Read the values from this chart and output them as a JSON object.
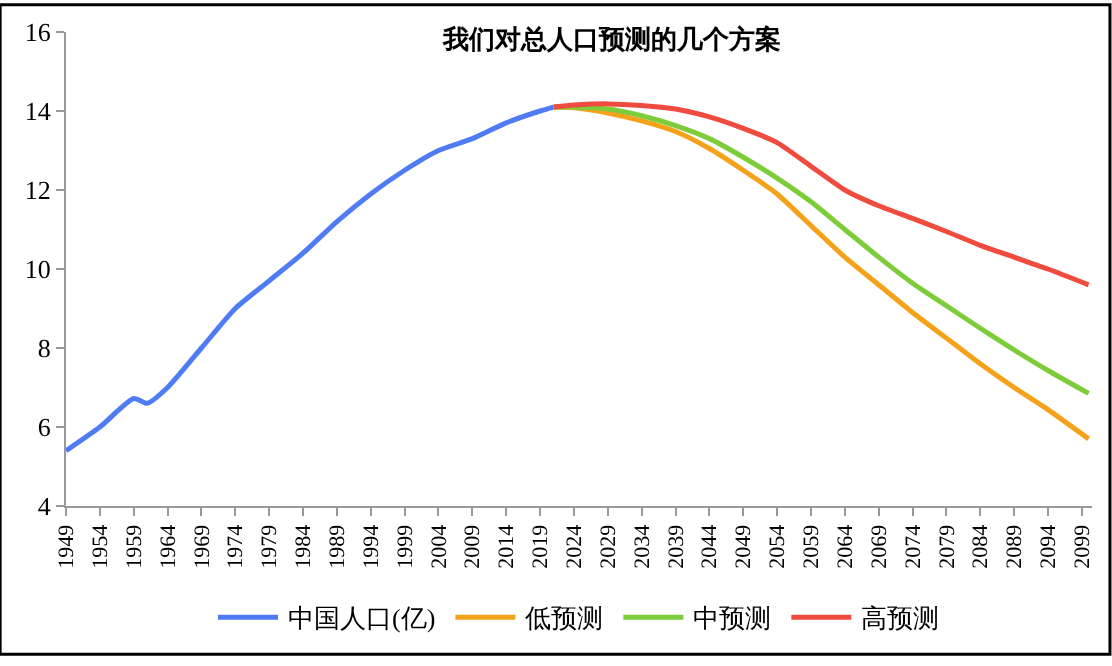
{
  "chart_data": {
    "type": "line",
    "title": "我们对总人口预测的几个方案",
    "xlim": [
      1949,
      2100.5
    ],
    "xticks": [
      1949,
      1954,
      1959,
      1964,
      1969,
      1974,
      1979,
      1984,
      1989,
      1994,
      1999,
      2004,
      2009,
      2014,
      2019,
      2024,
      2029,
      2034,
      2039,
      2044,
      2049,
      2054,
      2059,
      2064,
      2069,
      2074,
      2079,
      2084,
      2089,
      2094,
      2099
    ],
    "ylim": [
      4,
      16
    ],
    "yticks": [
      4,
      6,
      8,
      10,
      12,
      14,
      16
    ],
    "legend": "bottom",
    "marker": "none",
    "line_style": "solid",
    "series": [
      {
        "name": "中国人口(亿)",
        "color": "#4f7cf5",
        "x": [
          1949,
          1954,
          1959,
          1961,
          1964,
          1969,
          1974,
          1979,
          1984,
          1989,
          1994,
          1999,
          2004,
          2009,
          2014,
          2019,
          2021
        ],
        "values": [
          5.4,
          6.0,
          6.72,
          6.6,
          7.0,
          8.0,
          9.0,
          9.7,
          10.4,
          11.2,
          11.9,
          12.5,
          13.0,
          13.3,
          13.7,
          14.0,
          14.1
        ]
      },
      {
        "name": "低预测",
        "color": "#f5a21b",
        "x": [
          2021,
          2024,
          2029,
          2034,
          2039,
          2044,
          2049,
          2054,
          2059,
          2064,
          2069,
          2074,
          2079,
          2084,
          2089,
          2094,
          2100
        ],
        "values": [
          14.1,
          14.08,
          13.95,
          13.75,
          13.48,
          13.05,
          12.5,
          11.9,
          11.1,
          10.3,
          9.6,
          8.9,
          8.25,
          7.6,
          7.0,
          6.44,
          5.7
        ]
      },
      {
        "name": "中预测",
        "color": "#7dcc3a",
        "x": [
          2021,
          2024,
          2029,
          2034,
          2039,
          2044,
          2049,
          2054,
          2059,
          2064,
          2069,
          2074,
          2079,
          2084,
          2089,
          2094,
          2100
        ],
        "values": [
          14.1,
          14.1,
          14.05,
          13.88,
          13.63,
          13.3,
          12.83,
          12.3,
          11.7,
          11.0,
          10.3,
          9.64,
          9.07,
          8.5,
          7.95,
          7.43,
          6.85
        ]
      },
      {
        "name": "高预测",
        "color": "#ef4b3f",
        "x": [
          2021,
          2024,
          2029,
          2034,
          2039,
          2044,
          2049,
          2054,
          2059,
          2064,
          2069,
          2074,
          2079,
          2084,
          2089,
          2094,
          2100
        ],
        "values": [
          14.1,
          14.15,
          14.18,
          14.14,
          14.05,
          13.85,
          13.56,
          13.2,
          12.6,
          12.0,
          11.6,
          11.28,
          10.95,
          10.6,
          10.3,
          10.0,
          9.6
        ]
      }
    ]
  }
}
